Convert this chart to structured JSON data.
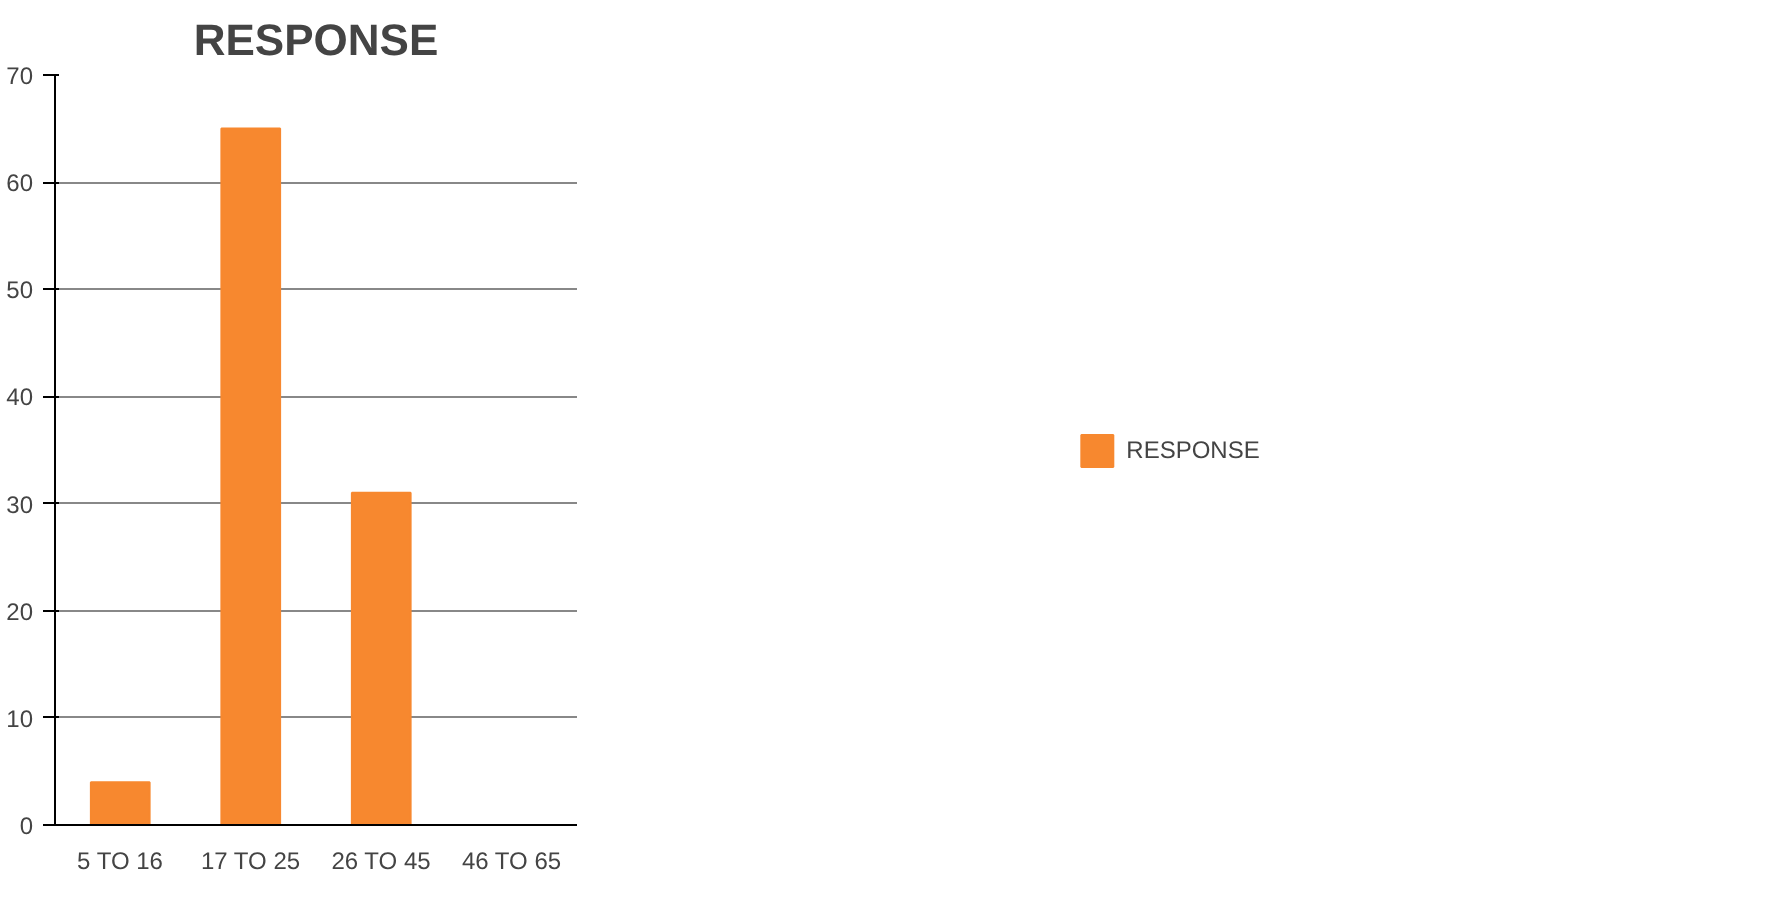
{
  "chart_data": {
    "type": "bar",
    "title": "RESPONSE",
    "categories": [
      "5 TO 16",
      "17 TO 25",
      "26 TO 45",
      "46 TO 65"
    ],
    "series": [
      {
        "name": "RESPONSE",
        "color": "#f7882f",
        "values": [
          4,
          65,
          31,
          0
        ]
      }
    ],
    "ylim": [
      0,
      70
    ],
    "yticks": [
      0,
      10,
      20,
      30,
      40,
      50,
      60,
      70
    ],
    "grid": "y",
    "legend": "right"
  }
}
